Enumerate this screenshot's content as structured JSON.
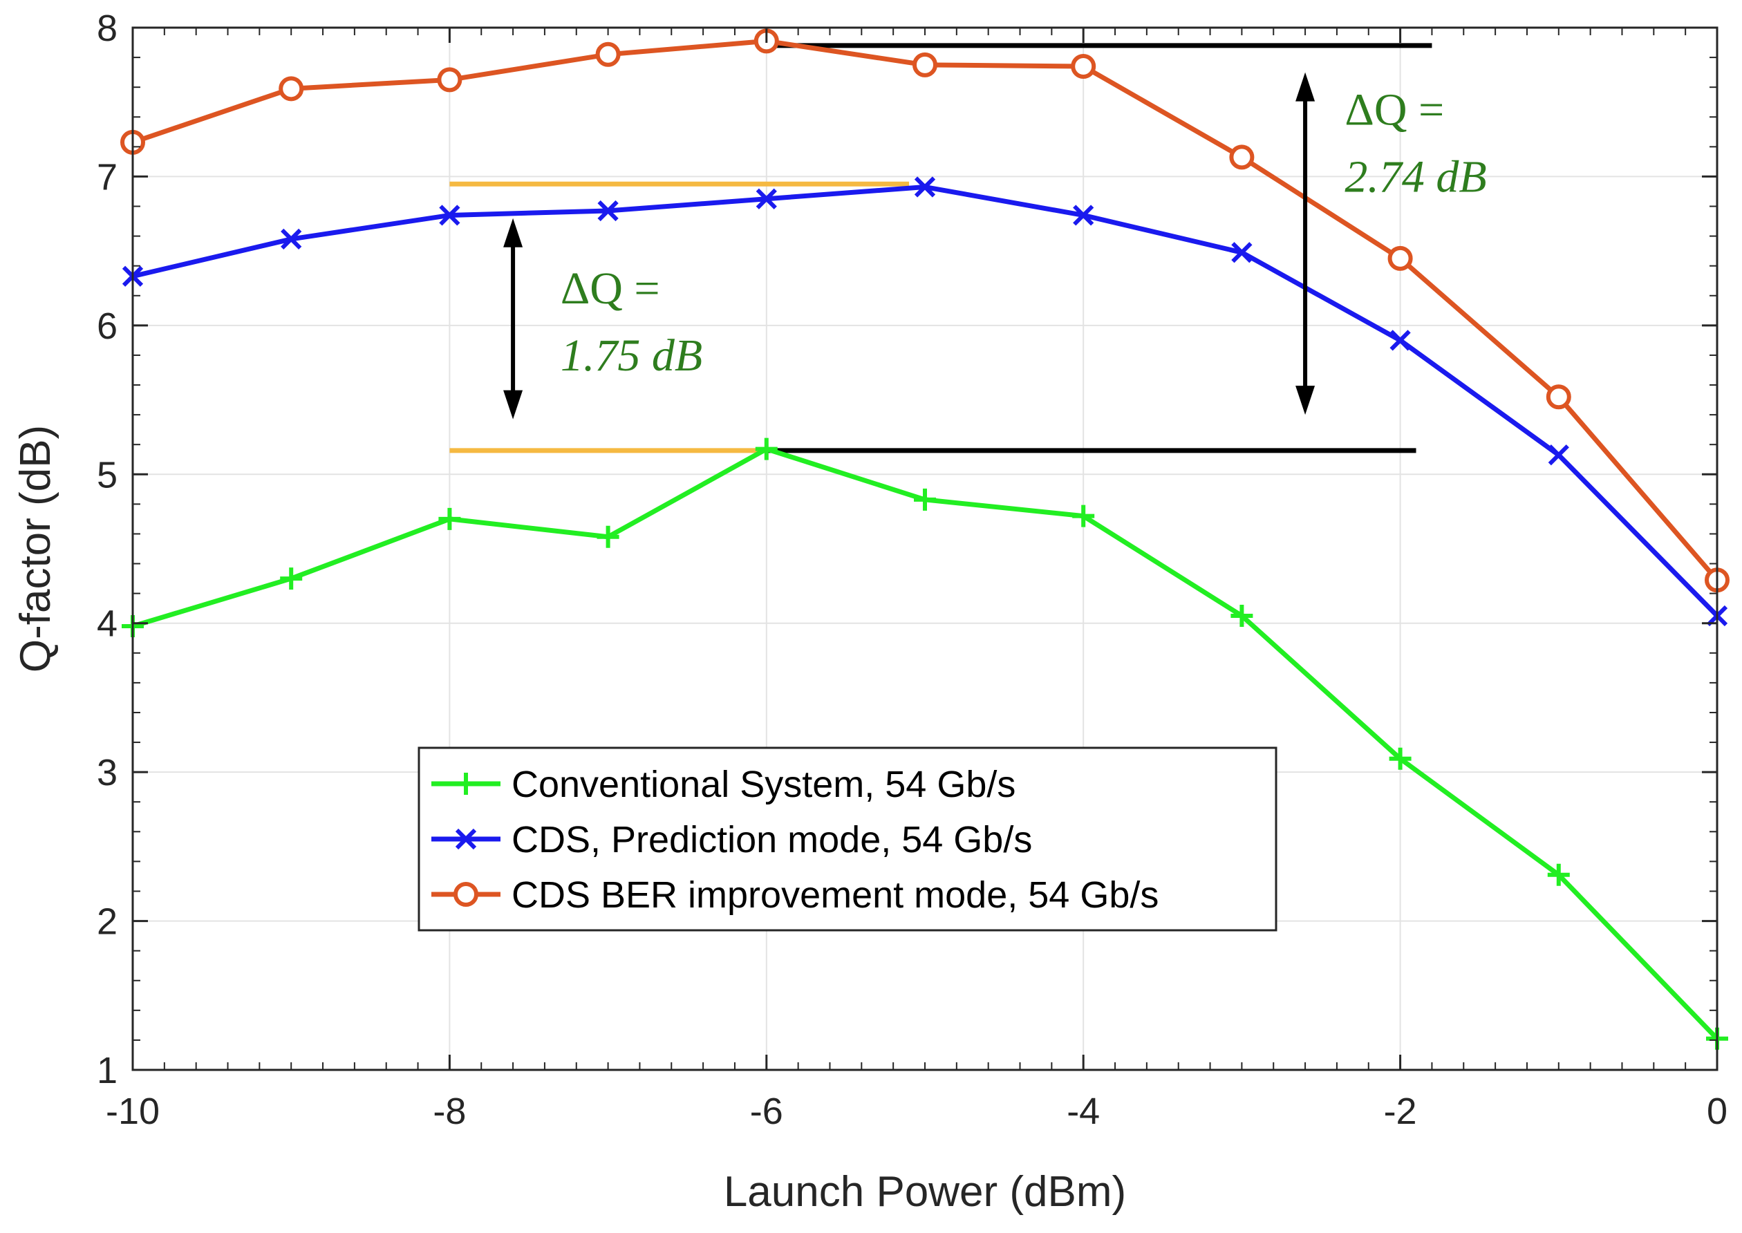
{
  "chart_data": {
    "type": "line",
    "title": "",
    "xlabel": "Launch Power (dBm)",
    "ylabel": "Q-factor (dB)",
    "xlim": [
      -10,
      0
    ],
    "ylim": [
      1,
      8
    ],
    "xticks": [
      -10,
      -8,
      -6,
      -4,
      -2,
      0
    ],
    "xtick_labels": [
      "-10",
      "-8",
      "-6",
      "-4",
      "-2",
      "0"
    ],
    "yticks": [
      1,
      2,
      3,
      4,
      5,
      6,
      7,
      8
    ],
    "ytick_labels": [
      "1",
      "2",
      "3",
      "4",
      "5",
      "6",
      "7",
      "8"
    ],
    "x_minor_step": 0.2,
    "y_minor_step": 0.2,
    "grid": true,
    "legend_position": "lower-center",
    "x": [
      -10,
      -9,
      -8,
      -7,
      -6,
      -5,
      -4,
      -3,
      -2,
      -1,
      0
    ],
    "series": [
      {
        "name": "Conventional System, 54 Gb/s",
        "color": "#22ee22",
        "marker": "plus",
        "values": [
          3.98,
          4.3,
          4.7,
          4.58,
          5.17,
          4.83,
          4.72,
          4.05,
          3.09,
          2.31,
          1.21
        ]
      },
      {
        "name": "CDS, Prediction mode, 54 Gb/s",
        "color": "#1a1aee",
        "marker": "x",
        "values": [
          6.33,
          6.58,
          6.74,
          6.77,
          6.85,
          6.93,
          6.74,
          6.49,
          5.9,
          5.13,
          4.05
        ]
      },
      {
        "name": "CDS BER improvement mode, 54 Gb/s",
        "color": "#dd5522",
        "marker": "circle",
        "values": [
          7.23,
          7.59,
          7.65,
          7.82,
          7.91,
          7.75,
          7.74,
          7.13,
          6.45,
          5.52,
          4.29
        ]
      }
    ],
    "reference_lines": [
      {
        "color": "#f5b942",
        "x": [
          -8,
          -5.1
        ],
        "y": 6.95
      },
      {
        "color": "#f5b942",
        "x": [
          -8,
          -6
        ],
        "y": 5.16
      },
      {
        "color": "#000000",
        "x": [
          -6,
          -1.8
        ],
        "y": 7.88
      },
      {
        "color": "#000000",
        "x": [
          -6,
          -1.9
        ],
        "y": 5.16
      }
    ],
    "annotations": [
      {
        "label": "ΔQ =",
        "value": "1.75 dB",
        "color": "#2e7d1e",
        "arrow_x": -7.6,
        "arrow_y": [
          6.72,
          5.37
        ],
        "text_x": -7.3,
        "text_y": [
          6.25,
          5.8
        ]
      },
      {
        "label": "ΔQ =",
        "value": "2.74 dB",
        "color": "#2e7d1e",
        "arrow_x": -2.6,
        "arrow_y": [
          7.7,
          5.4
        ],
        "text_x": -2.35,
        "text_y": [
          7.45,
          7.0
        ]
      }
    ]
  }
}
